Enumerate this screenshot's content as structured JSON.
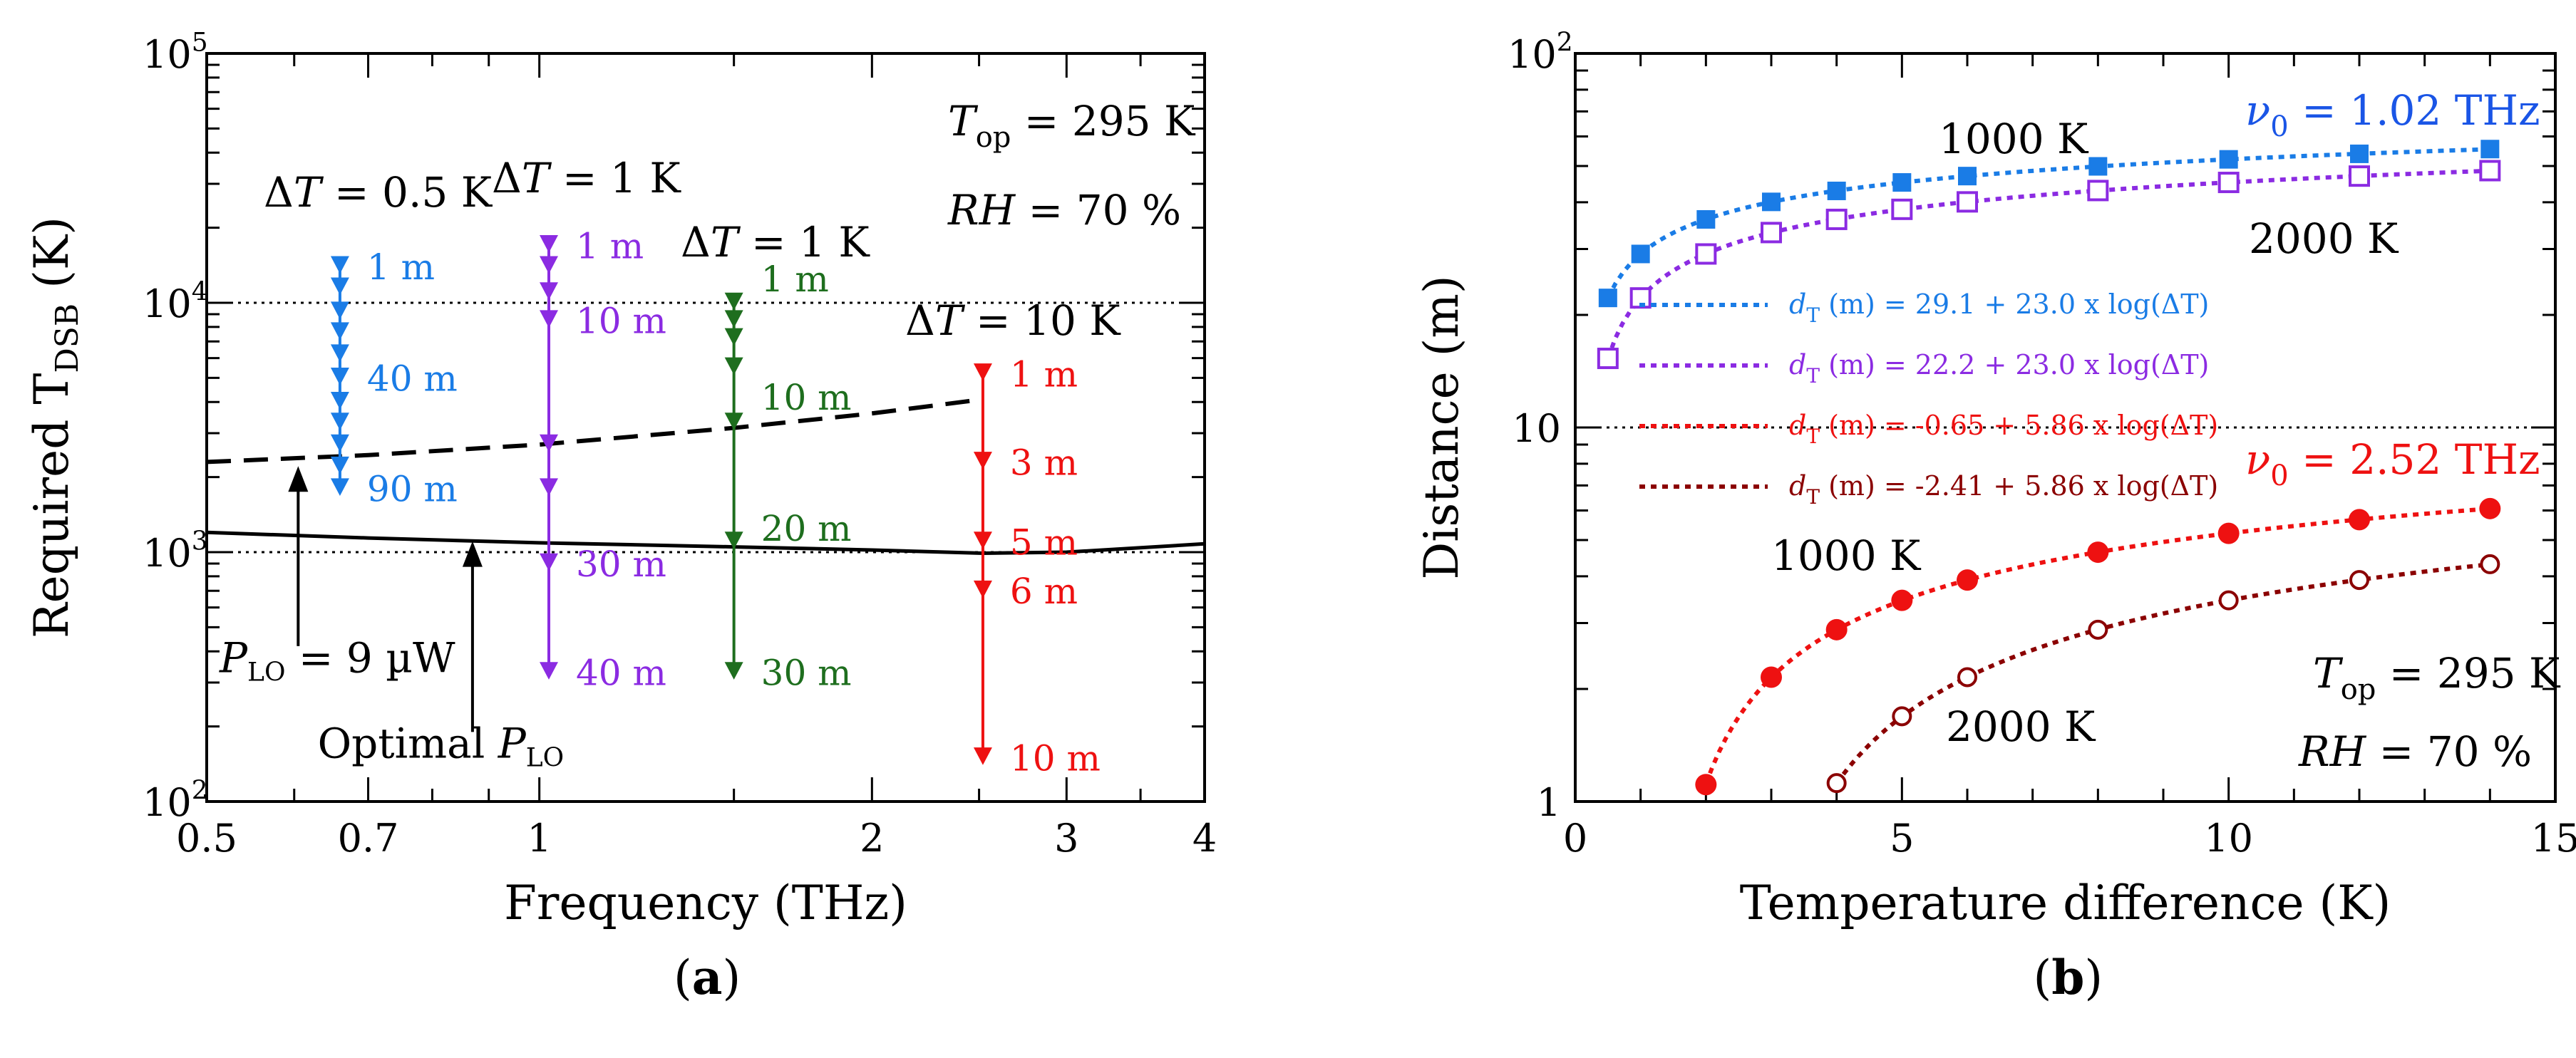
{
  "chart_data": [
    {
      "panel_label": "(a)",
      "type": "line",
      "xlabel": "Frequency (THz)",
      "ylabel": "Required T_DSB (K)",
      "ylabel_main": "Required T",
      "ylabel_sub": "DSB",
      "ylabel_unit": " (K)",
      "xscale": "log",
      "yscale": "log",
      "xlim": [
        0.5,
        4
      ],
      "ylim": [
        100,
        100000
      ],
      "xticks": [
        {
          "v": 0.5,
          "label": "0.5"
        },
        {
          "v": 0.7,
          "label": "0.7"
        },
        {
          "v": 1,
          "label": "1"
        },
        {
          "v": 2,
          "label": "2"
        },
        {
          "v": 3,
          "label": "3"
        },
        {
          "v": 4,
          "label": "4"
        }
      ],
      "yticks": [
        {
          "v": 100,
          "base": "10",
          "exp": "2"
        },
        {
          "v": 1000,
          "base": "10",
          "exp": "3"
        },
        {
          "v": 10000,
          "base": "10",
          "exp": "4"
        },
        {
          "v": 100000,
          "base": "10",
          "exp": "5"
        }
      ],
      "reference_lines": [
        1000,
        10000
      ],
      "conditions": {
        "Top_value": " = 295 K",
        "RH_value": " = 70 %"
      },
      "curves": [
        {
          "label": "P_LO = 9 µW",
          "style": "dashed",
          "color": "#000000",
          "x": [
            0.5,
            0.7,
            1,
            1.5,
            2,
            2.52
          ],
          "y": [
            2300,
            2450,
            2700,
            3150,
            3600,
            4100
          ]
        },
        {
          "label": "Optimal P_LO",
          "style": "solid",
          "color": "#000000",
          "x": [
            0.5,
            0.7,
            1,
            1.5,
            2,
            2.52,
            3,
            4
          ],
          "y": [
            1200,
            1140,
            1090,
            1050,
            1020,
            990,
            1000,
            1080
          ]
        }
      ],
      "curve_labels": {
        "plo_pre": "P",
        "plo_sub": "LO",
        "plo_post": " = 9 µW",
        "opt_pre": "Optimal P",
        "opt_sub": "LO"
      },
      "series": [
        {
          "name": "ΔT = 0.5 K",
          "dT": " = 0.5 K",
          "color": "#1a7ce6",
          "x": 0.66,
          "top": 14000,
          "markers": [
            14000,
            11500,
            9200,
            7600,
            6200,
            5000,
            4000,
            3300,
            2700,
            2200,
            1800
          ],
          "labels": [
            {
              "text": "1 m",
              "y": 14000
            },
            {
              "text": "40 m",
              "y": 5000
            },
            {
              "text": "90 m",
              "y": 1800
            }
          ]
        },
        {
          "name": "ΔT = 1 K",
          "dT": " = 1 K",
          "color": "#8b2be2",
          "x": 1.02,
          "top": 17000,
          "markers": [
            17000,
            14000,
            11000,
            8500,
            2700,
            1800,
            900,
            330
          ],
          "labels": [
            {
              "text": "1 m",
              "y": 17000
            },
            {
              "text": "10 m",
              "y": 8500
            },
            {
              "text": "30 m",
              "y": 900
            },
            {
              "text": "40 m",
              "y": 330
            }
          ]
        },
        {
          "name": "ΔT = 1 K",
          "dT": " = 1 K",
          "color": "#1e6e1e",
          "x": 1.5,
          "top": 10000,
          "markers": [
            10000,
            8500,
            7200,
            5500,
            3300,
            1100,
            330
          ],
          "labels": [
            {
              "text": "1 m",
              "y": 12500
            },
            {
              "text": "10 m",
              "y": 4200
            },
            {
              "text": "20 m",
              "y": 1250
            },
            {
              "text": "30 m",
              "y": 330
            }
          ]
        },
        {
          "name": "ΔT = 10 K",
          "dT": " = 10 K",
          "color": "#ee1111",
          "x": 2.52,
          "top": 5200,
          "markers": [
            5200,
            2300,
            1100,
            700,
            150
          ],
          "labels": [
            {
              "text": "1 m",
              "y": 5200
            },
            {
              "text": "3 m",
              "y": 2300
            },
            {
              "text": "5 m",
              "y": 1100
            },
            {
              "text": "6 m",
              "y": 700
            },
            {
              "text": "10 m",
              "y": 150
            }
          ]
        }
      ]
    },
    {
      "panel_label": "(b)",
      "type": "line",
      "xlabel": "Temperature difference (K)",
      "ylabel": "Distance (m)",
      "xscale": "linear",
      "yscale": "log",
      "xlim": [
        0,
        15
      ],
      "ylim": [
        1,
        100
      ],
      "xticks": [
        {
          "v": 0,
          "label": "0"
        },
        {
          "v": 5,
          "label": "5"
        },
        {
          "v": 10,
          "label": "10"
        },
        {
          "v": 15,
          "label": "15"
        }
      ],
      "yticks": [
        {
          "v": 1,
          "label": "1"
        },
        {
          "v": 10,
          "label": "10"
        },
        {
          "v": 100,
          "base": "10",
          "exp": "2"
        }
      ],
      "reference_lines": [
        10
      ],
      "conditions": {
        "Top_value": " = 295 K",
        "RH_value": " = 70 %"
      },
      "freq_labels": [
        {
          "value": " = 1.02 THz",
          "color": "#1a55e6"
        },
        {
          "value": " = 2.52 THz",
          "color": "#ee1111"
        }
      ],
      "series": [
        {
          "name": "1000 K",
          "color": "#1a7ce6",
          "marker": "filled-square",
          "a": 29.1,
          "b": 23.0,
          "x": [
            0.5,
            1,
            2,
            3,
            4,
            5,
            6,
            8,
            10,
            12,
            14
          ],
          "y": [
            22.2,
            29.1,
            36.0,
            40.1,
            42.9,
            45.2,
            47.0,
            49.9,
            52.1,
            53.9,
            55.5
          ]
        },
        {
          "name": "2000 K",
          "color": "#8b2be2",
          "marker": "open-square",
          "a": 22.2,
          "b": 23.0,
          "x": [
            0.5,
            1,
            2,
            3,
            4,
            5,
            6,
            8,
            10,
            12,
            14
          ],
          "y": [
            15.3,
            22.2,
            29.1,
            33.2,
            36.0,
            38.3,
            40.1,
            43.0,
            45.2,
            47.0,
            48.6
          ]
        },
        {
          "name": "1000 K",
          "color": "#ee1111",
          "marker": "filled-circle",
          "a": -0.65,
          "b": 5.86,
          "x": [
            2,
            3,
            4,
            5,
            6,
            8,
            10,
            12,
            14
          ],
          "y": [
            1.11,
            2.15,
            2.88,
            3.45,
            3.91,
            4.64,
            5.21,
            5.67,
            6.07
          ]
        },
        {
          "name": "2000 K",
          "color": "#8b0000",
          "marker": "open-circle",
          "a": -2.41,
          "b": 5.86,
          "x": [
            4,
            5,
            6,
            8,
            10,
            12,
            14
          ],
          "y": [
            1.12,
            1.69,
            2.15,
            2.88,
            3.45,
            3.91,
            4.31
          ]
        }
      ],
      "fit_legend": [
        {
          "color": "#1a7ce6",
          "text": " (m) = 29.1 + 23.0 x log(ΔT)"
        },
        {
          "color": "#8b2be2",
          "text": " (m) = 22.2 + 23.0 x log(ΔT)"
        },
        {
          "color": "#ee1111",
          "text": " (m) = -0.65 + 5.86 x log(ΔT)"
        },
        {
          "color": "#8b0000",
          "text": " (m) = -2.41 + 5.86 x log(ΔT)"
        }
      ]
    }
  ]
}
